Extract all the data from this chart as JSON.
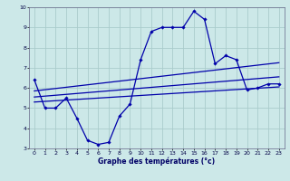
{
  "title": "",
  "xlabel": "Graphe des températures (°c)",
  "bg_color": "#cce8e8",
  "grid_color": "#aacccc",
  "line_color": "#0000aa",
  "xlim": [
    -0.5,
    23.5
  ],
  "ylim": [
    3,
    10
  ],
  "xticks": [
    0,
    1,
    2,
    3,
    4,
    5,
    6,
    7,
    8,
    9,
    10,
    11,
    12,
    13,
    14,
    15,
    16,
    17,
    18,
    19,
    20,
    21,
    22,
    23
  ],
  "yticks": [
    3,
    4,
    5,
    6,
    7,
    8,
    9,
    10
  ],
  "temp_x": [
    0,
    1,
    2,
    3,
    4,
    5,
    6,
    7,
    8,
    9,
    10,
    11,
    12,
    13,
    14,
    15,
    16,
    17,
    18,
    19,
    20,
    21,
    22,
    23
  ],
  "temp_y": [
    6.4,
    5.0,
    5.0,
    5.5,
    4.5,
    3.4,
    3.2,
    3.3,
    4.6,
    5.2,
    7.4,
    8.8,
    9.0,
    9.0,
    9.0,
    9.8,
    9.4,
    7.2,
    7.6,
    7.4,
    5.9,
    6.0,
    6.2,
    6.2
  ],
  "trend1_x": [
    0,
    23
  ],
  "trend1_y": [
    5.3,
    6.05
  ],
  "trend2_x": [
    0,
    23
  ],
  "trend2_y": [
    5.55,
    6.55
  ],
  "trend3_x": [
    0,
    23
  ],
  "trend3_y": [
    5.85,
    7.25
  ]
}
